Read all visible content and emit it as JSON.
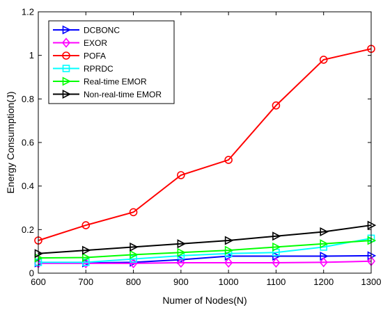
{
  "chart_data": {
    "type": "line",
    "title": "",
    "xlabel": "Numer of Nodes(N)",
    "ylabel": "Energy Consumption(J)",
    "x": [
      600,
      700,
      800,
      900,
      1000,
      1100,
      1200,
      1300
    ],
    "xlim": [
      600,
      1300
    ],
    "ylim": [
      0,
      1.2
    ],
    "xticks": [
      600,
      700,
      800,
      900,
      1000,
      1100,
      1200,
      1300
    ],
    "yticks": [
      0,
      0.2,
      0.4,
      0.6,
      0.8,
      1,
      1.2
    ],
    "ytick_labels": [
      "0",
      "0.2",
      "0.4",
      "0.6",
      "0.8",
      "1",
      "1.2"
    ],
    "grid": false,
    "legend_position": "top-left",
    "series": [
      {
        "name": "DCBONC",
        "color": "#0000ff",
        "marker": "triangle-right",
        "values": [
          0.047,
          0.047,
          0.05,
          0.062,
          0.078,
          0.078,
          0.078,
          0.08
        ]
      },
      {
        "name": "EXOR",
        "color": "#ff00ff",
        "marker": "diamond",
        "values": [
          0.045,
          0.045,
          0.045,
          0.048,
          0.048,
          0.048,
          0.05,
          0.055
        ]
      },
      {
        "name": "POFA",
        "color": "#ff0000",
        "marker": "circle",
        "values": [
          0.15,
          0.22,
          0.28,
          0.45,
          0.52,
          0.77,
          0.98,
          1.03
        ]
      },
      {
        "name": "RPRDC",
        "color": "#00ffff",
        "marker": "square",
        "values": [
          0.05,
          0.05,
          0.065,
          0.08,
          0.09,
          0.095,
          0.12,
          0.16
        ]
      },
      {
        "name": "Real-time EMOR",
        "color": "#00ff00",
        "marker": "triangle-right",
        "values": [
          0.07,
          0.072,
          0.085,
          0.095,
          0.105,
          0.12,
          0.135,
          0.15
        ]
      },
      {
        "name": "Non-real-time EMOR",
        "color": "#000000",
        "marker": "triangle-right",
        "values": [
          0.09,
          0.105,
          0.12,
          0.135,
          0.15,
          0.17,
          0.19,
          0.22
        ]
      }
    ]
  }
}
